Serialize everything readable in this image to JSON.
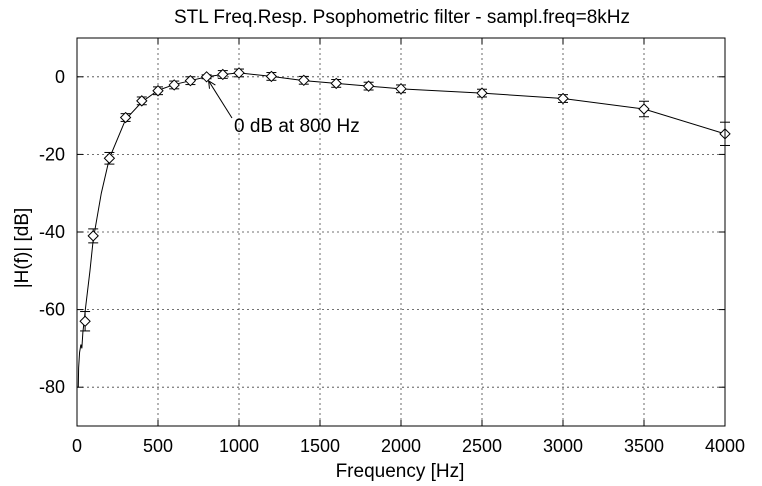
{
  "chart_data": {
    "type": "line",
    "title": "STL Freq.Resp. Psophometric filter - sampl.freq=8kHz",
    "xlabel": "Frequency [Hz]",
    "ylabel": "|H(f)| [dB]",
    "xlim": [
      0,
      4000
    ],
    "ylim": [
      -90,
      10
    ],
    "xticks": [
      0,
      500,
      1000,
      1500,
      2000,
      2500,
      3000,
      3500,
      4000
    ],
    "yticks": [
      -80,
      -60,
      -40,
      -20,
      0
    ],
    "xtick_labels": [
      "0",
      "500",
      "1000",
      "1500",
      "2000",
      "2500",
      "3000",
      "3500",
      "4000"
    ],
    "ytick_labels": [
      "-80",
      "-60",
      "-40",
      "-20",
      "0"
    ],
    "grid": true,
    "series": [
      {
        "curve": [
          [
            8,
            -80
          ],
          [
            10,
            -75
          ],
          [
            16,
            -71
          ],
          [
            24,
            -69
          ],
          [
            30,
            -70
          ],
          [
            36,
            -66
          ],
          [
            44,
            -63
          ],
          [
            50,
            -60.5
          ],
          [
            60,
            -57
          ],
          [
            80,
            -50
          ],
          [
            100,
            -42
          ],
          [
            150,
            -30
          ],
          [
            200,
            -21
          ],
          [
            300,
            -11
          ],
          [
            400,
            -6.5
          ],
          [
            500,
            -3.5
          ],
          [
            600,
            -2
          ],
          [
            700,
            -1
          ],
          [
            800,
            0
          ],
          [
            900,
            0.6
          ],
          [
            1000,
            1
          ],
          [
            1200,
            0.1
          ],
          [
            1400,
            -1
          ],
          [
            1600,
            -1.7
          ],
          [
            1800,
            -2.4
          ],
          [
            2000,
            -3.1
          ],
          [
            2500,
            -4.2
          ],
          [
            3000,
            -5.6
          ],
          [
            3500,
            -8.3
          ],
          [
            4000,
            -14.7
          ]
        ],
        "points": [
          {
            "x": 50,
            "y": -63,
            "err": 2.5
          },
          {
            "x": 100,
            "y": -41,
            "err": 1.8
          },
          {
            "x": 200,
            "y": -21,
            "err": 1.5
          },
          {
            "x": 300,
            "y": -10.5,
            "err": 1
          },
          {
            "x": 400,
            "y": -6.2,
            "err": 1
          },
          {
            "x": 500,
            "y": -3.6,
            "err": 1
          },
          {
            "x": 600,
            "y": -2.1,
            "err": 1
          },
          {
            "x": 700,
            "y": -1,
            "err": 1
          },
          {
            "x": 800,
            "y": 0,
            "err": 0.5
          },
          {
            "x": 900,
            "y": 0.6,
            "err": 1
          },
          {
            "x": 1000,
            "y": 1,
            "err": 1
          },
          {
            "x": 1200,
            "y": 0.1,
            "err": 1
          },
          {
            "x": 1400,
            "y": -0.9,
            "err": 1
          },
          {
            "x": 1600,
            "y": -1.7,
            "err": 1
          },
          {
            "x": 1800,
            "y": -2.4,
            "err": 1
          },
          {
            "x": 2000,
            "y": -3.1,
            "err": 1
          },
          {
            "x": 2500,
            "y": -4.2,
            "err": 1
          },
          {
            "x": 3000,
            "y": -5.6,
            "err": 1
          },
          {
            "x": 3500,
            "y": -8.3,
            "err": 2
          },
          {
            "x": 4000,
            "y": -14.7,
            "err": 3
          }
        ]
      }
    ],
    "annotations": [
      {
        "text": "0 dB at 800 Hz",
        "arrow_to": [
          800,
          0
        ]
      }
    ]
  }
}
